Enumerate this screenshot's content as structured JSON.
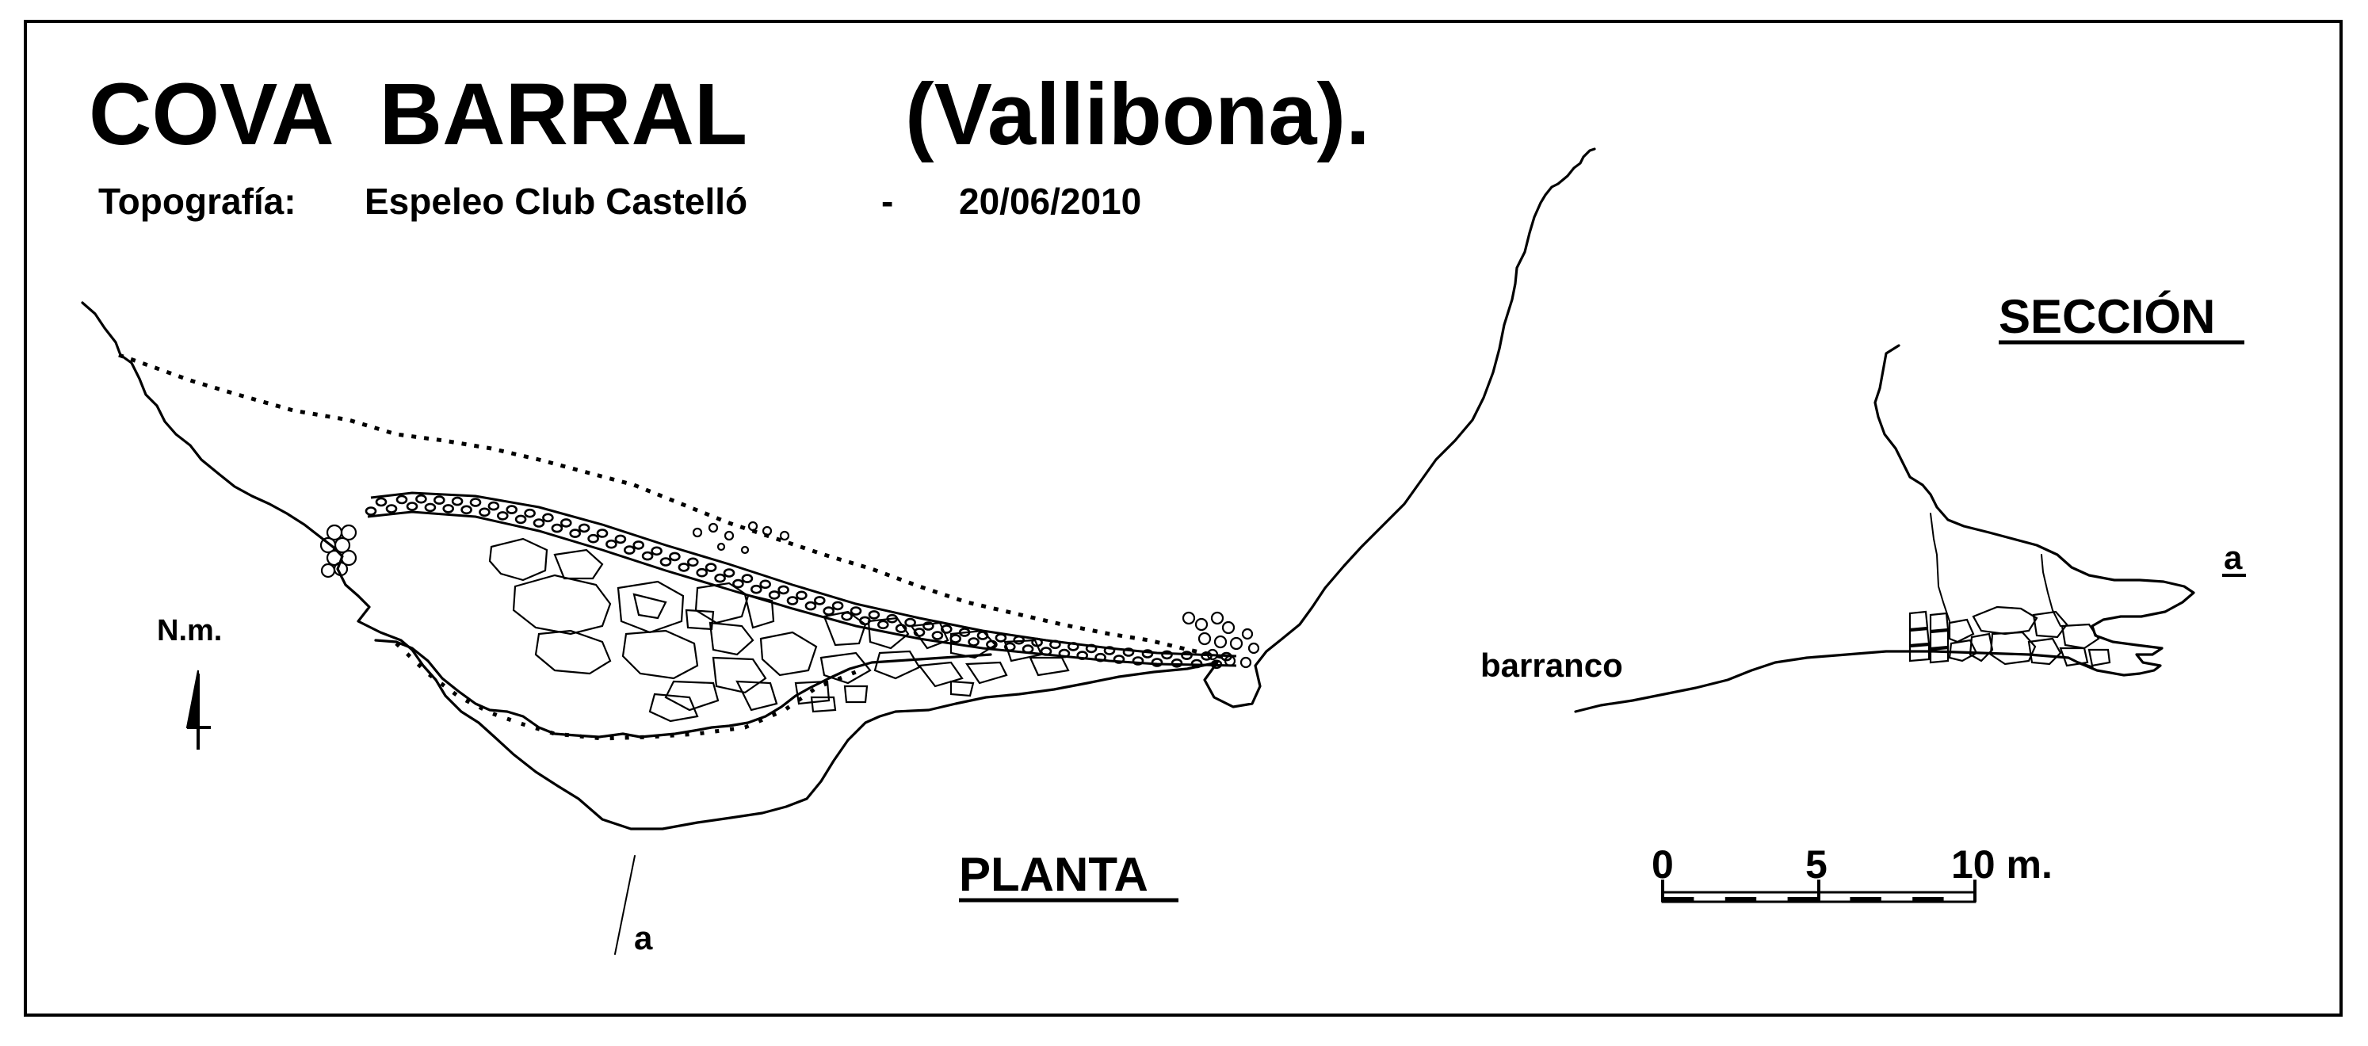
{
  "title": "COVA  BARRAL",
  "location": "(Vallibona).",
  "credits": {
    "label": "Topografía:",
    "author": "Espeleo Club Castelló",
    "separator": "-",
    "date": "20/06/2010"
  },
  "plan": {
    "label": "PLANTA",
    "north_label": "N.m.",
    "section_marker": "a"
  },
  "section": {
    "label": "SECCIÓN",
    "marker": "a",
    "ravine_label": "barranco"
  },
  "scale_bar": {
    "ticks": [
      "0",
      "5",
      "10 m."
    ],
    "values_m": [
      0,
      5,
      10
    ]
  },
  "colors": {
    "ink": "#000000",
    "paper": "#ffffff"
  }
}
